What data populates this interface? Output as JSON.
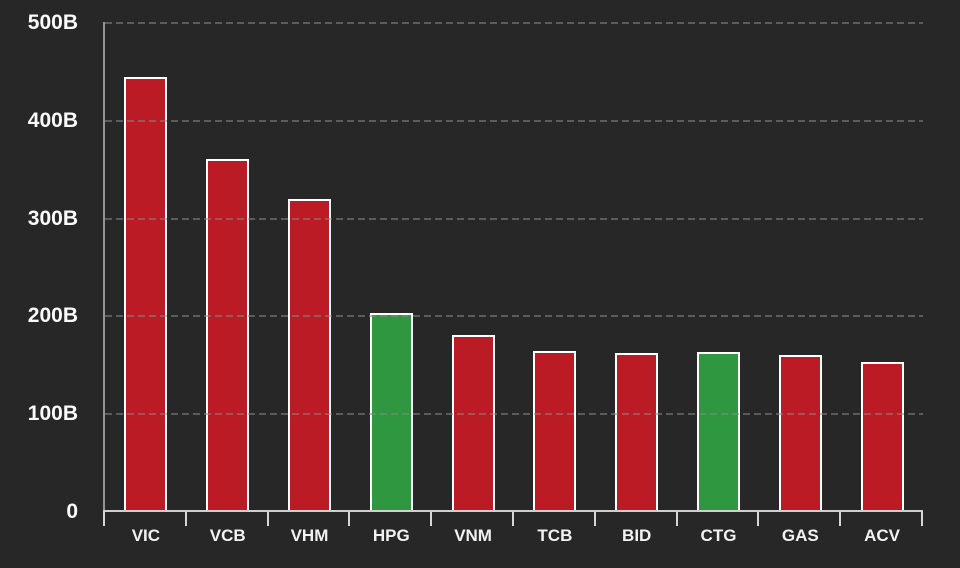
{
  "colors": {
    "background": "#272727",
    "bar_red": "#bb1b24",
    "bar_green": "#2e9740",
    "bar_border": "#ffffff",
    "gridline": "#555555",
    "y_axis_line": "#949494",
    "baseline": "#cfcfcf",
    "text": "#ffffff"
  },
  "chart_data": {
    "type": "bar",
    "title": "",
    "xlabel": "",
    "ylabel": "",
    "unit": "B",
    "categories": [
      "VIC",
      "VCB",
      "VHM",
      "HPG",
      "VNM",
      "TCB",
      "BID",
      "CTG",
      "GAS",
      "ACV"
    ],
    "values": [
      445,
      361,
      320,
      203,
      181,
      165,
      163,
      164,
      161,
      153
    ],
    "bar_colors": [
      "red",
      "red",
      "red",
      "green",
      "red",
      "red",
      "red",
      "green",
      "red",
      "red"
    ],
    "ylim": [
      0,
      500
    ],
    "yticks": [
      {
        "label": "500B",
        "value": 500
      },
      {
        "label": "400B",
        "value": 400
      },
      {
        "label": "300B",
        "value": 300
      },
      {
        "label": "200B",
        "value": 200
      },
      {
        "label": "100B",
        "value": 100
      },
      {
        "label": "0",
        "value": 0
      }
    ],
    "grid": "horizontal-dashed",
    "legend": "none"
  }
}
